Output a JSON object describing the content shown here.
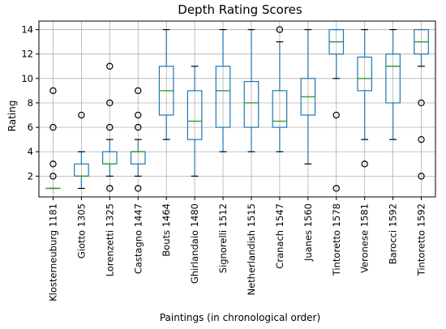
{
  "chart_data": {
    "type": "boxplot",
    "title": "Depth Rating Scores",
    "xlabel": "Paintings (in chronological order)",
    "ylabel": "Rating",
    "ylim": [
      0.3,
      14.7
    ],
    "yticks": [
      2,
      4,
      6,
      8,
      10,
      12,
      14
    ],
    "grid": true,
    "categories": [
      "Klosterneuburg 1181",
      "Giotto 1305",
      "Lorenzetti 1325",
      "Castagno 1447",
      "Bouts 1464",
      "Ghirlandaio 1480",
      "Signorelli 1512",
      "Netherlandish 1515",
      "Cranach 1547",
      "Juanes 1560",
      "Tintoretto 1578",
      "Veronese 1581",
      "Barocci 1592",
      "Tintoretto 1592"
    ],
    "boxes": [
      {
        "whislo": 1,
        "q1": 1,
        "med": 1,
        "q3": 1,
        "whishi": 1,
        "fliers": [
          2,
          3,
          6,
          9
        ]
      },
      {
        "whislo": 1,
        "q1": 2,
        "med": 2,
        "q3": 3,
        "whishi": 4,
        "fliers": [
          7
        ]
      },
      {
        "whislo": 2,
        "q1": 3,
        "med": 3,
        "q3": 4,
        "whishi": 5,
        "fliers": [
          1,
          6,
          8,
          11
        ]
      },
      {
        "whislo": 2,
        "q1": 3,
        "med": 4,
        "q3": 4,
        "whishi": 5,
        "fliers": [
          1,
          6,
          7,
          9
        ]
      },
      {
        "whislo": 5,
        "q1": 7,
        "med": 9,
        "q3": 11,
        "whishi": 14,
        "fliers": []
      },
      {
        "whislo": 2,
        "q1": 5,
        "med": 6.5,
        "q3": 9,
        "whishi": 11,
        "fliers": []
      },
      {
        "whislo": 4,
        "q1": 6,
        "med": 9,
        "q3": 11,
        "whishi": 14,
        "fliers": []
      },
      {
        "whislo": 4,
        "q1": 6,
        "med": 8,
        "q3": 9.75,
        "whishi": 14,
        "fliers": []
      },
      {
        "whislo": 4,
        "q1": 6,
        "med": 6.5,
        "q3": 9,
        "whishi": 13,
        "fliers": [
          14
        ]
      },
      {
        "whislo": 3,
        "q1": 7,
        "med": 8.5,
        "q3": 10,
        "whishi": 14,
        "fliers": []
      },
      {
        "whislo": 10,
        "q1": 12,
        "med": 13,
        "q3": 14,
        "whishi": 14,
        "fliers": [
          1,
          7
        ]
      },
      {
        "whislo": 5,
        "q1": 9,
        "med": 10,
        "q3": 11.75,
        "whishi": 14,
        "fliers": [
          3
        ]
      },
      {
        "whislo": 5,
        "q1": 8,
        "med": 11,
        "q3": 12,
        "whishi": 14,
        "fliers": []
      },
      {
        "whislo": 11,
        "q1": 12,
        "med": 13,
        "q3": 14,
        "whishi": 14,
        "fliers": [
          2,
          5,
          8
        ]
      }
    ]
  }
}
